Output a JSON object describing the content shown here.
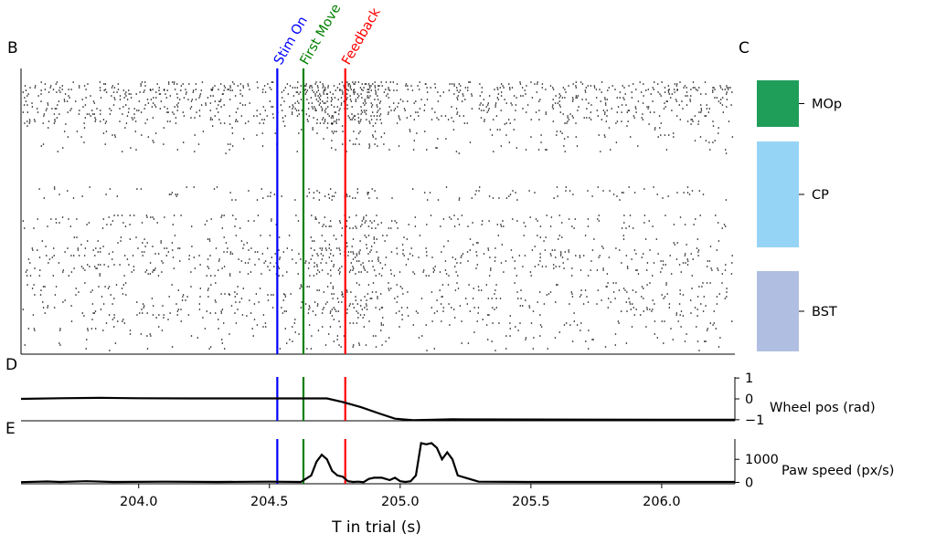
{
  "panels": {
    "B": "B",
    "C": "C",
    "D": "D",
    "E": "E"
  },
  "events": [
    {
      "label": "Stim On",
      "t": 204.53,
      "color": "#0000ff"
    },
    {
      "label": "First Move",
      "t": 204.63,
      "color": "#008000"
    },
    {
      "label": "Feedback",
      "t": 204.79,
      "color": "#ff0000"
    }
  ],
  "chart_data": [
    {
      "type": "raster",
      "panel": "B",
      "xlim": [
        203.55,
        206.28
      ],
      "row_groups": [
        {
          "name": "MOp"
        },
        {
          "name": "CP"
        },
        {
          "name": "BST"
        }
      ]
    },
    {
      "type": "bar",
      "panel": "C",
      "orientation": "vertical-stack",
      "categories": [
        "MOp",
        "CP",
        "BST"
      ],
      "colors": [
        "#1f9e5a",
        "#96d4f5",
        "#b0bfe1"
      ]
    },
    {
      "type": "line",
      "panel": "D",
      "ylabel": "Wheel pos (rad)",
      "yticks": [
        "1",
        "0",
        "−1"
      ],
      "ylim": [
        -1.05,
        1.05
      ],
      "x": [
        203.55,
        203.7,
        203.85,
        204.0,
        204.2,
        204.4,
        204.6,
        204.72,
        204.78,
        204.85,
        204.92,
        204.98,
        205.05,
        205.2,
        205.5,
        206.0,
        206.28
      ],
      "values": [
        0.0,
        0.03,
        0.05,
        0.03,
        0.02,
        0.02,
        0.02,
        0.02,
        -0.15,
        -0.4,
        -0.7,
        -0.95,
        -1.02,
        -0.98,
        -0.99,
        -1.0,
        -1.0
      ]
    },
    {
      "type": "line",
      "panel": "E",
      "xlabel": "T in trial (s)",
      "ylabel": "Paw speed (px/s)",
      "yticks": [
        "1000",
        "0"
      ],
      "xticks": [
        "204.0",
        "205.0",
        "205.5",
        "206.0"
      ],
      "xtick_values": [
        204.0,
        205.0,
        205.5,
        206.0
      ],
      "xticks_mid": "204.5",
      "xtick_mid_value": 204.5,
      "ylim": [
        -60,
        1880
      ],
      "x": [
        203.55,
        203.65,
        203.7,
        203.8,
        203.9,
        204.1,
        204.3,
        204.5,
        204.62,
        204.66,
        204.68,
        204.7,
        204.72,
        204.74,
        204.76,
        204.78,
        204.8,
        204.82,
        204.84,
        204.86,
        204.88,
        204.9,
        204.93,
        204.96,
        204.98,
        205.0,
        205.02,
        205.04,
        205.06,
        205.08,
        205.1,
        205.12,
        205.14,
        205.16,
        205.18,
        205.2,
        205.22,
        205.3,
        205.5,
        205.8,
        206.1,
        206.28
      ],
      "values": [
        10,
        40,
        20,
        50,
        20,
        30,
        20,
        30,
        20,
        300,
        900,
        1200,
        1000,
        500,
        300,
        250,
        50,
        20,
        30,
        10,
        150,
        200,
        200,
        100,
        200,
        50,
        20,
        50,
        300,
        1700,
        1650,
        1700,
        1500,
        1000,
        1300,
        1000,
        300,
        30,
        20,
        20,
        20,
        20
      ]
    }
  ]
}
